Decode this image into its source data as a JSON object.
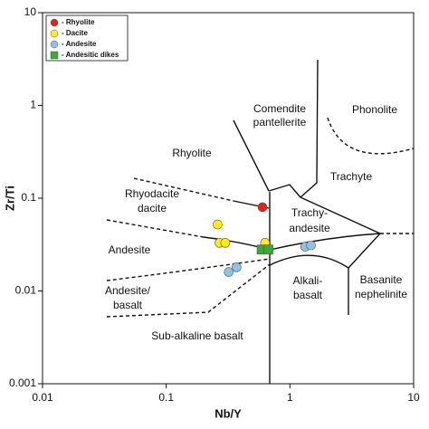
{
  "chart_data": {
    "type": "scatter",
    "log_x": true,
    "log_y": true,
    "x_label": "Nb/Y",
    "y_label": "Zr/Ti",
    "xlim": [
      0.01,
      10
    ],
    "xticks": [
      0.01,
      0.1,
      1,
      10
    ],
    "ylim": [
      0.001,
      10
    ],
    "yticks": [
      0.001,
      0.01,
      0.1,
      1,
      10
    ],
    "legend": "upper left",
    "series": [
      {
        "name": "- Rhyolite",
        "color": "#e2231a",
        "marker": "circle",
        "x": [
          0.6
        ],
        "values": [
          0.08
        ]
      },
      {
        "name": "- Dacite",
        "color": "#ffec17",
        "marker": "circle",
        "x": [
          0.26,
          0.27,
          0.3,
          0.63
        ],
        "values": [
          0.052,
          0.033,
          0.033,
          0.033
        ]
      },
      {
        "name": "- Andesite",
        "color": "#8fc3e6",
        "marker": "circle",
        "x": [
          0.32,
          0.37,
          1.33,
          1.48
        ],
        "values": [
          0.016,
          0.018,
          0.03,
          0.031
        ]
      },
      {
        "name": "- Andesitic dikes",
        "color": "#3aa935",
        "marker": "square",
        "x": [
          0.59,
          0.67
        ],
        "values": [
          0.028,
          0.028
        ]
      }
    ],
    "annotations": [
      "Comendite",
      "pantellerite",
      "Phonolite",
      "Rhyolite",
      "Rhyodacite",
      "dacite",
      "Trachyte",
      "Trachy-",
      "andesite",
      "Andesite",
      "Andesite/",
      "basalt",
      "Alkali-",
      "basalt",
      "Basanite",
      "nephelinite",
      "Sub-alkaline basalt"
    ]
  }
}
